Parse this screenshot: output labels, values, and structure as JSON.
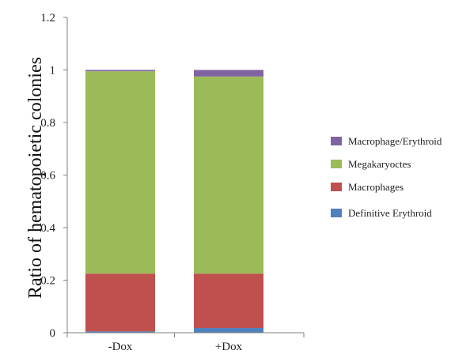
{
  "chart_data": {
    "type": "bar",
    "stacked": true,
    "categories": [
      "-Dox",
      "+Dox"
    ],
    "series": [
      {
        "name": "Definitive Erythroid",
        "values": [
          0.005,
          0.018
        ],
        "color": "#4F81BD"
      },
      {
        "name": "Macrophages",
        "values": [
          0.22,
          0.207
        ],
        "color": "#C0504D"
      },
      {
        "name": "Megakaryoctes",
        "values": [
          0.77,
          0.75
        ],
        "color": "#9BBB59"
      },
      {
        "name": "Macrophage/Erythroid",
        "values": [
          0.005,
          0.025
        ],
        "color": "#8064A2"
      }
    ],
    "legend_order": [
      "Macrophage/Erythroid",
      "Megakaryoctes",
      "Macrophages",
      "Definitive Erythroid"
    ],
    "legend_position": "right",
    "title": "",
    "xlabel": "",
    "ylabel": "Ratio of hematopoietic colonies",
    "ylim": [
      0,
      1.2
    ],
    "yticks": [
      0,
      0.2,
      0.4,
      0.6,
      0.8,
      1,
      1.2
    ],
    "ytick_labels": [
      "0",
      "0.2",
      "0.4",
      "0.6",
      "0.8",
      "1",
      "1.2"
    ],
    "grid": false
  }
}
